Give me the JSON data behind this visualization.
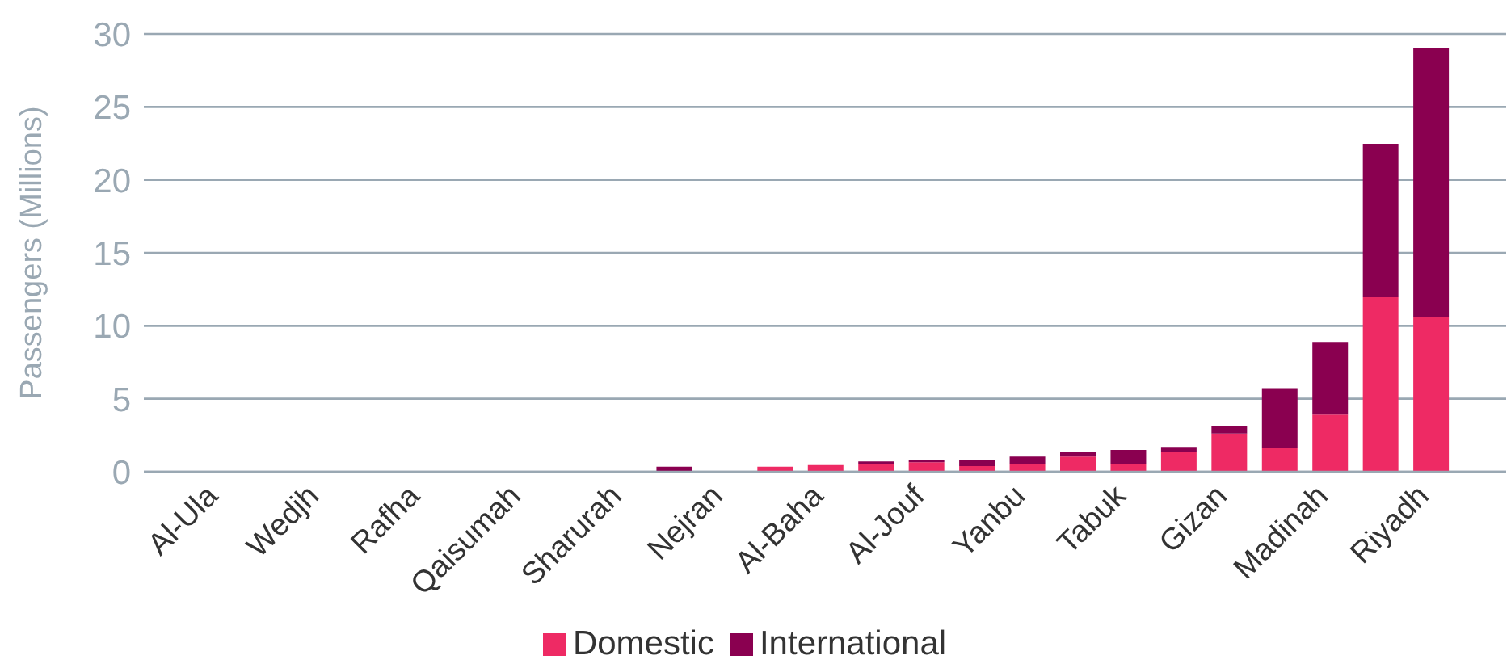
{
  "chart_data": {
    "type": "bar",
    "stacked": true,
    "ylabel": "Passengers (Millions)",
    "categories": [
      null,
      "Al-Ula",
      null,
      "Wedjh",
      null,
      "Rafha",
      null,
      "Qaisumah",
      null,
      "Sharurah",
      null,
      "Nejran",
      null,
      "Al-Baha",
      null,
      "Al-Jouf",
      null,
      "Yanbu",
      null,
      "Tabuk",
      null,
      "Gizan",
      null,
      "Madinah",
      null,
      "Riyadh",
      null
    ],
    "series": [
      {
        "name": "Domestic",
        "color": "#ee2a64",
        "values": [
          0,
          0,
          0,
          0,
          0,
          0,
          0,
          0,
          0,
          0,
          0,
          0,
          0.35,
          0.46,
          0.55,
          0.65,
          0.39,
          0.5,
          1.04,
          0.5,
          1.39,
          2.62,
          1.66,
          3.92,
          11.95,
          10.63,
          0
        ]
      },
      {
        "name": "International",
        "color": "#8a0050",
        "values": [
          0,
          0,
          0,
          0,
          0,
          0,
          0,
          0,
          0,
          0,
          0.35,
          0,
          0,
          0,
          0.15,
          0.15,
          0.42,
          0.54,
          0.35,
          1.0,
          0.31,
          0.54,
          4.07,
          4.98,
          10.52,
          18.39,
          0
        ]
      }
    ],
    "ylim": [
      0,
      30
    ],
    "yticks": [
      0,
      5,
      10,
      15,
      20,
      25,
      30
    ],
    "grid": "y",
    "legend": "bottom"
  }
}
